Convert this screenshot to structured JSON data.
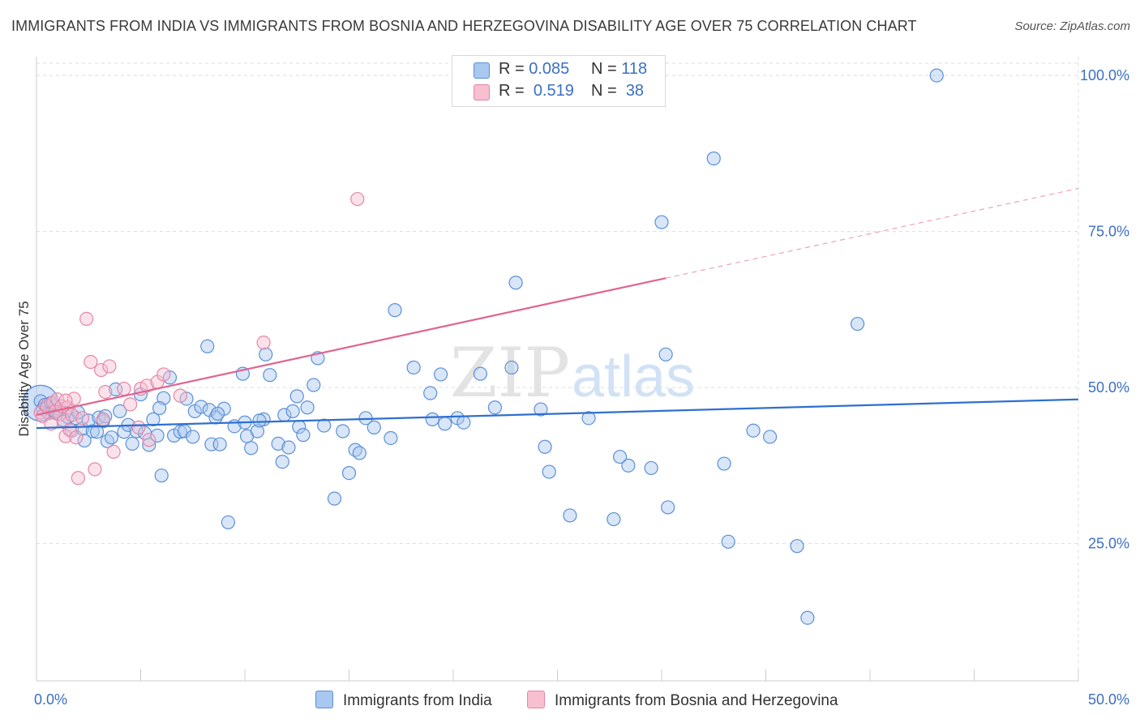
{
  "title": "IMMIGRANTS FROM INDIA VS IMMIGRANTS FROM BOSNIA AND HERZEGOVINA DISABILITY AGE OVER 75 CORRELATION CHART",
  "source": "Source: ZipAtlas.com",
  "watermark": {
    "zip": "ZIP",
    "atlas": "atlas"
  },
  "legend_top": {
    "rows": [
      {
        "r_label": "R =",
        "r_value": "0.085",
        "n_label": "N =",
        "n_value": "118"
      },
      {
        "r_label": "R =",
        "r_value": "0.519",
        "n_label": "N =",
        "n_value": "38"
      }
    ]
  },
  "legend_bottom": {
    "india": "Immigrants from India",
    "bosnia": "Immigrants from Bosnia and Herzegovina"
  },
  "colors": {
    "india_fill": "#a9c8f0",
    "india_stroke": "#5b8fd6",
    "india_line": "#2f6fd0",
    "bosnia_fill": "#f7bfd0",
    "bosnia_stroke": "#e486a6",
    "bosnia_line": "#e0648f",
    "axis_text": "#3b6fc4",
    "grid": "#dddddd"
  },
  "chart_data": {
    "type": "scatter",
    "title": "IMMIGRANTS FROM INDIA VS IMMIGRANTS FROM BOSNIA AND HERZEGOVINA DISABILITY AGE OVER 75 CORRELATION CHART",
    "xlabel": "",
    "ylabel": "Disability Age Over 75",
    "xlim": [
      0,
      50
    ],
    "ylim": [
      3,
      103
    ],
    "x_tick_labels": [
      "0.0%",
      "50.0%"
    ],
    "y_ticks": [
      25,
      50,
      75,
      100
    ],
    "y_tick_labels": [
      "25.0%",
      "50.0%",
      "75.0%",
      "100.0%"
    ],
    "grid": true,
    "legend_position": "top-center",
    "series": [
      {
        "name": "Immigrants from India",
        "R": 0.085,
        "N": 118,
        "trend": {
          "x": [
            0,
            50
          ],
          "y": [
            43.5,
            48.1
          ],
          "solid_until": 50
        },
        "points": [
          [
            0.2,
            47.8
          ],
          [
            0.3,
            46.5
          ],
          [
            0.4,
            47.2
          ],
          [
            0.5,
            46.8
          ],
          [
            0.6,
            45.9
          ],
          [
            0.7,
            47.5
          ],
          [
            0.8,
            46.3
          ],
          [
            0.9,
            47.0
          ],
          [
            1.0,
            45.8
          ],
          [
            1.1,
            46.6
          ],
          [
            1.3,
            44.8
          ],
          [
            1.5,
            45.3
          ],
          [
            1.7,
            43.1
          ],
          [
            1.9,
            45.1
          ],
          [
            2.0,
            46.0
          ],
          [
            2.2,
            43.4
          ],
          [
            2.3,
            41.5
          ],
          [
            2.5,
            44.7
          ],
          [
            2.7,
            43.0
          ],
          [
            2.9,
            42.9
          ],
          [
            3.0,
            45.2
          ],
          [
            3.2,
            44.6
          ],
          [
            3.4,
            41.4
          ],
          [
            3.6,
            42.0
          ],
          [
            3.8,
            49.7
          ],
          [
            4.0,
            46.2
          ],
          [
            4.2,
            42.9
          ],
          [
            4.4,
            44.0
          ],
          [
            4.6,
            41.0
          ],
          [
            4.8,
            43.0
          ],
          [
            5.0,
            48.9
          ],
          [
            5.2,
            42.7
          ],
          [
            5.4,
            40.8
          ],
          [
            5.6,
            44.9
          ],
          [
            5.8,
            42.3
          ],
          [
            6.0,
            35.9
          ],
          [
            6.1,
            48.3
          ],
          [
            6.4,
            51.6
          ],
          [
            6.6,
            42.3
          ],
          [
            6.9,
            42.9
          ],
          [
            7.1,
            43.0
          ],
          [
            7.2,
            48.2
          ],
          [
            7.5,
            42.1
          ],
          [
            7.6,
            46.2
          ],
          [
            7.9,
            46.9
          ],
          [
            8.2,
            56.6
          ],
          [
            8.3,
            46.4
          ],
          [
            8.4,
            40.9
          ],
          [
            8.6,
            45.2
          ],
          [
            8.8,
            40.9
          ],
          [
            9.0,
            46.6
          ],
          [
            9.2,
            28.4
          ],
          [
            9.5,
            43.8
          ],
          [
            9.9,
            52.2
          ],
          [
            10.0,
            44.4
          ],
          [
            10.1,
            42.2
          ],
          [
            10.3,
            40.3
          ],
          [
            10.6,
            43.0
          ],
          [
            10.9,
            44.9
          ],
          [
            11.0,
            55.3
          ],
          [
            11.2,
            52.0
          ],
          [
            11.6,
            41.0
          ],
          [
            11.8,
            38.1
          ],
          [
            11.9,
            45.6
          ],
          [
            12.1,
            40.4
          ],
          [
            12.3,
            46.2
          ],
          [
            12.5,
            48.6
          ],
          [
            12.6,
            43.7
          ],
          [
            12.8,
            42.4
          ],
          [
            13.0,
            46.8
          ],
          [
            13.3,
            50.4
          ],
          [
            13.5,
            54.7
          ],
          [
            14.3,
            32.2
          ],
          [
            14.7,
            43.0
          ],
          [
            15.0,
            36.3
          ],
          [
            15.3,
            40.0
          ],
          [
            15.5,
            39.5
          ],
          [
            15.8,
            45.1
          ],
          [
            17.0,
            41.9
          ],
          [
            17.2,
            62.4
          ],
          [
            18.1,
            53.2
          ],
          [
            18.9,
            49.1
          ],
          [
            19.0,
            44.9
          ],
          [
            19.6,
            44.2
          ],
          [
            20.2,
            45.1
          ],
          [
            21.3,
            52.2
          ],
          [
            22.0,
            46.8
          ],
          [
            22.8,
            53.2
          ],
          [
            23.0,
            66.8
          ],
          [
            24.4,
            40.5
          ],
          [
            24.6,
            36.5
          ],
          [
            25.6,
            29.5
          ],
          [
            27.7,
            28.9
          ],
          [
            28.4,
            37.5
          ],
          [
            29.5,
            37.1
          ],
          [
            30.0,
            76.5
          ],
          [
            30.2,
            55.3
          ],
          [
            30.3,
            30.8
          ],
          [
            32.5,
            86.7
          ],
          [
            33.0,
            37.8
          ],
          [
            33.2,
            25.3
          ],
          [
            34.4,
            43.1
          ],
          [
            35.2,
            42.1
          ],
          [
            36.5,
            24.6
          ],
          [
            37.0,
            13.1
          ],
          [
            39.4,
            60.2
          ],
          [
            43.2,
            100.0
          ],
          [
            19.4,
            52.1
          ],
          [
            24.2,
            46.5
          ],
          [
            26.5,
            45.1
          ],
          [
            3.3,
            45.4
          ],
          [
            5.9,
            46.7
          ],
          [
            8.7,
            45.8
          ],
          [
            10.7,
            44.7
          ],
          [
            13.8,
            43.9
          ],
          [
            16.2,
            43.6
          ],
          [
            20.5,
            44.4
          ],
          [
            28.0,
            38.9
          ]
        ]
      },
      {
        "name": "Immigrants from Bosnia and Herzegovina",
        "R": 0.519,
        "N": 38,
        "trend": {
          "x": [
            0,
            50
          ],
          "y": [
            45.6,
            81.9
          ],
          "solid_until": 30.2
        },
        "points": [
          [
            0.2,
            46.0
          ],
          [
            0.3,
            45.4
          ],
          [
            0.5,
            47.1
          ],
          [
            0.7,
            44.2
          ],
          [
            0.8,
            47.6
          ],
          [
            0.9,
            46.2
          ],
          [
            1.0,
            48.1
          ],
          [
            1.1,
            45.7
          ],
          [
            1.2,
            47.0
          ],
          [
            1.3,
            44.5
          ],
          [
            1.4,
            42.2
          ],
          [
            1.5,
            46.8
          ],
          [
            1.6,
            43.2
          ],
          [
            1.7,
            45.6
          ],
          [
            1.8,
            48.2
          ],
          [
            1.9,
            42.0
          ],
          [
            2.0,
            35.5
          ],
          [
            2.2,
            45.1
          ],
          [
            2.4,
            61.0
          ],
          [
            2.6,
            54.1
          ],
          [
            2.8,
            36.9
          ],
          [
            3.1,
            52.8
          ],
          [
            3.3,
            49.3
          ],
          [
            3.5,
            53.4
          ],
          [
            3.7,
            39.7
          ],
          [
            4.2,
            49.8
          ],
          [
            4.5,
            47.3
          ],
          [
            5.0,
            49.8
          ],
          [
            5.3,
            50.3
          ],
          [
            5.4,
            41.6
          ],
          [
            5.8,
            50.9
          ],
          [
            6.1,
            52.1
          ],
          [
            6.9,
            48.7
          ],
          [
            10.9,
            57.2
          ],
          [
            15.4,
            80.2
          ],
          [
            3.2,
            44.9
          ],
          [
            1.4,
            47.9
          ],
          [
            4.9,
            43.6
          ]
        ]
      }
    ]
  }
}
